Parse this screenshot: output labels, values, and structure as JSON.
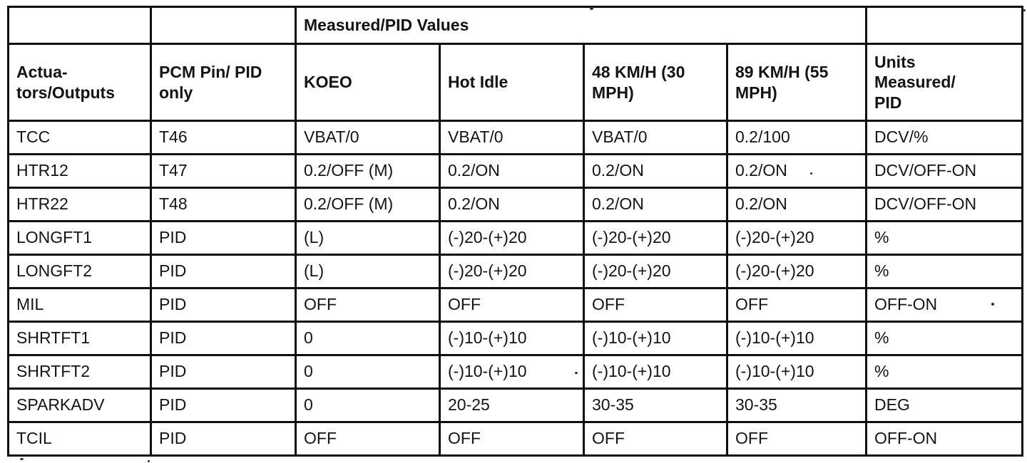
{
  "document": {
    "background_color": "#ffffff",
    "ink_color": "#141414"
  },
  "table": {
    "group_header": {
      "measured_pid_values": "Measured/PID Values"
    },
    "columns": [
      {
        "key": "actuators_outputs",
        "label": "Actua-\ntors/Outputs"
      },
      {
        "key": "pcm_pin_pid_only",
        "label": "PCM Pin/ PID\nonly"
      },
      {
        "key": "koeo",
        "label": "KOEO"
      },
      {
        "key": "hot_idle",
        "label": "Hot Idle"
      },
      {
        "key": "kmh48_mph30",
        "label": "48 KM/H (30\nMPH)"
      },
      {
        "key": "kmh89_mph55",
        "label": "89 KM/H (55\nMPH)"
      },
      {
        "key": "units_measured_pid",
        "label": "Units\nMeasured/\nPID"
      }
    ],
    "rows": [
      [
        "TCC",
        "T46",
        "VBAT/0",
        "VBAT/0",
        "VBAT/0",
        "0.2/100",
        "DCV/%"
      ],
      [
        "HTR12",
        "T47",
        "0.2/OFF (M)",
        "0.2/ON",
        "0.2/ON",
        "0.2/ON",
        "DCV/OFF-ON"
      ],
      [
        "HTR22",
        "T48",
        "0.2/OFF (M)",
        "0.2/ON",
        "0.2/ON",
        "0.2/ON",
        "DCV/OFF-ON"
      ],
      [
        "LONGFT1",
        "PID",
        "(L)",
        "(-)20-(+)20",
        "(-)20-(+)20",
        "(-)20-(+)20",
        "%"
      ],
      [
        "LONGFT2",
        "PID",
        "(L)",
        "(-)20-(+)20",
        "(-)20-(+)20",
        "(-)20-(+)20",
        "%"
      ],
      [
        "MIL",
        "PID",
        "OFF",
        "OFF",
        "OFF",
        "OFF",
        "OFF-ON"
      ],
      [
        "SHRTFT1",
        "PID",
        "0",
        "(-)10-(+)10",
        "(-)10-(+)10",
        "(-)10-(+)10",
        "%"
      ],
      [
        "SHRTFT2",
        "PID",
        "0",
        "(-)10-(+)10",
        "(-)10-(+)10",
        "(-)10-(+)10",
        "%"
      ],
      [
        "SPARKADV",
        "PID",
        "0",
        "20-25",
        "30-35",
        "30-35",
        "DEG"
      ],
      [
        "TCIL",
        "PID",
        "OFF",
        "OFF",
        "OFF",
        "OFF",
        "OFF-ON"
      ]
    ]
  }
}
